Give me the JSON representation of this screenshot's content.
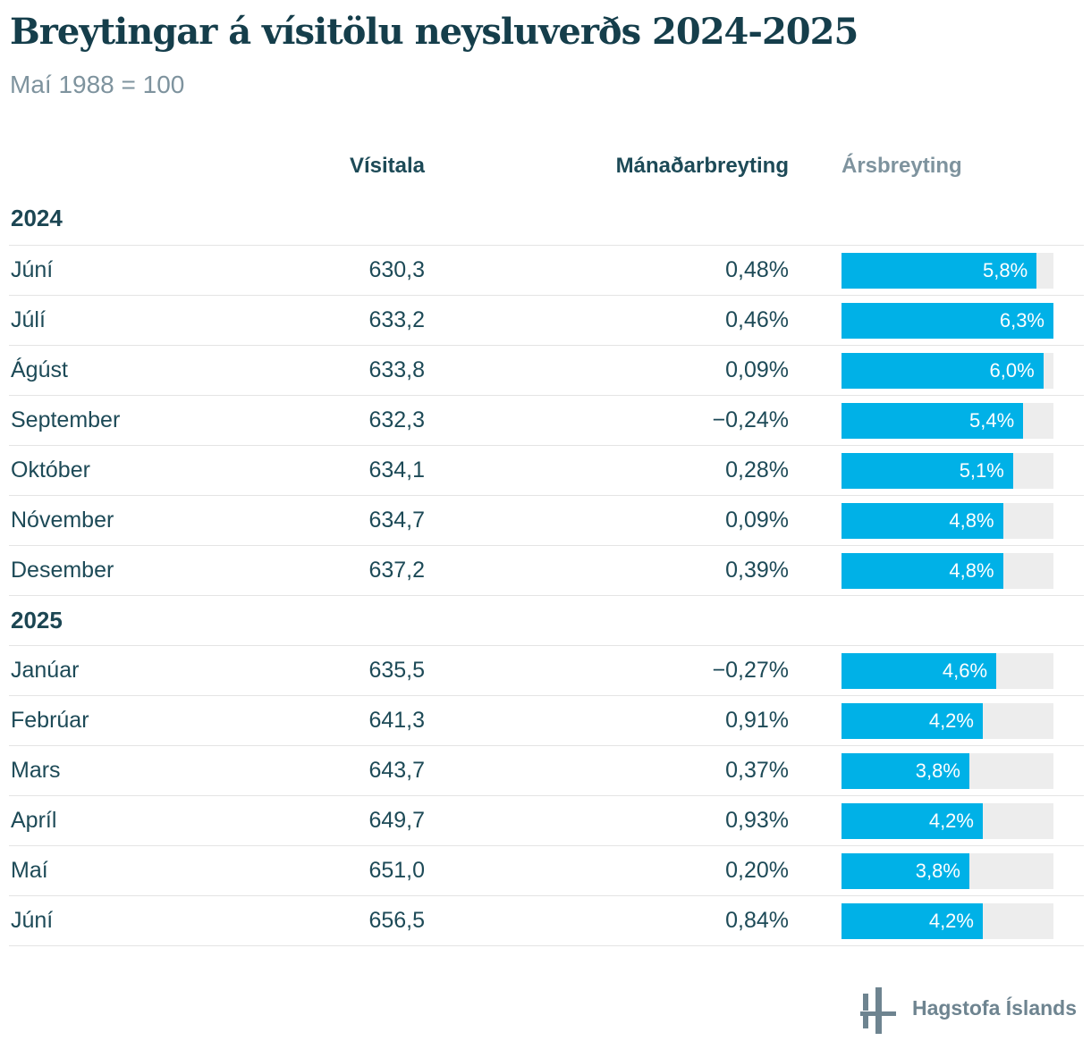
{
  "header": {
    "title": "Breytingar á vísitölu neysluverðs 2024-2025",
    "subtitle": "Maí 1988 = 100"
  },
  "columns": {
    "visitala": "Vísitala",
    "monthly": "Mánaðarbreyting",
    "annual": "Ársbreyting"
  },
  "sections": [
    {
      "year": "2024",
      "rows": [
        {
          "month": "Júní",
          "visitala": "630,3",
          "monthly": "0,48%",
          "annual_label": "5,8%",
          "annual": 5.8
        },
        {
          "month": "Júlí",
          "visitala": "633,2",
          "monthly": "0,46%",
          "annual_label": "6,3%",
          "annual": 6.3
        },
        {
          "month": "Ágúst",
          "visitala": "633,8",
          "monthly": "0,09%",
          "annual_label": "6,0%",
          "annual": 6.0
        },
        {
          "month": "September",
          "visitala": "632,3",
          "monthly": "−0,24%",
          "annual_label": "5,4%",
          "annual": 5.4
        },
        {
          "month": "Október",
          "visitala": "634,1",
          "monthly": "0,28%",
          "annual_label": "5,1%",
          "annual": 5.1
        },
        {
          "month": "Nóvember",
          "visitala": "634,7",
          "monthly": "0,09%",
          "annual_label": "4,8%",
          "annual": 4.8
        },
        {
          "month": "Desember",
          "visitala": "637,2",
          "monthly": "0,39%",
          "annual_label": "4,8%",
          "annual": 4.8
        }
      ]
    },
    {
      "year": "2025",
      "rows": [
        {
          "month": "Janúar",
          "visitala": "635,5",
          "monthly": "−0,27%",
          "annual_label": "4,6%",
          "annual": 4.6
        },
        {
          "month": "Febrúar",
          "visitala": "641,3",
          "monthly": "0,91%",
          "annual_label": "4,2%",
          "annual": 4.2
        },
        {
          "month": "Mars",
          "visitala": "643,7",
          "monthly": "0,37%",
          "annual_label": "3,8%",
          "annual": 3.8
        },
        {
          "month": "Apríl",
          "visitala": "649,7",
          "monthly": "0,93%",
          "annual_label": "4,2%",
          "annual": 4.2
        },
        {
          "month": "Maí",
          "visitala": "651,0",
          "monthly": "0,20%",
          "annual_label": "3,8%",
          "annual": 3.8
        },
        {
          "month": "Júní",
          "visitala": "656,5",
          "monthly": "0,84%",
          "annual_label": "4,2%",
          "annual": 4.2
        }
      ]
    }
  ],
  "footer": {
    "org": "Hagstofa Íslands"
  },
  "colors": {
    "bar": "#00b1e7",
    "bar_track": "#ededed",
    "text_dark": "#1d4a57",
    "text_muted": "#7e939e",
    "logo": "#6e8490",
    "separator": "#e4e4e4"
  },
  "chart_data": {
    "type": "table",
    "title": "Breytingar á vísitölu neysluverðs 2024-2025",
    "subtitle": "Maí 1988 = 100",
    "columns": [
      "Vísitala",
      "Mánaðarbreyting",
      "Ársbreyting"
    ],
    "categories": [
      "2024 Júní",
      "2024 Júlí",
      "2024 Ágúst",
      "2024 September",
      "2024 Október",
      "2024 Nóvember",
      "2024 Desember",
      "2025 Janúar",
      "2025 Febrúar",
      "2025 Mars",
      "2025 Apríl",
      "2025 Maí",
      "2025 Júní"
    ],
    "series": [
      {
        "name": "Vísitala",
        "values": [
          630.3,
          633.2,
          633.8,
          632.3,
          634.1,
          634.7,
          637.2,
          635.5,
          641.3,
          643.7,
          649.7,
          651.0,
          656.5
        ]
      },
      {
        "name": "Mánaðarbreyting (%)",
        "values": [
          0.48,
          0.46,
          0.09,
          -0.24,
          0.28,
          0.09,
          0.39,
          -0.27,
          0.91,
          0.37,
          0.93,
          0.2,
          0.84
        ]
      },
      {
        "name": "Ársbreyting (%)",
        "values": [
          5.8,
          6.3,
          6.0,
          5.4,
          5.1,
          4.8,
          4.8,
          4.6,
          4.2,
          3.8,
          4.2,
          3.8,
          4.2
        ]
      }
    ],
    "bar_column": "Ársbreyting",
    "bar_type": "bar",
    "bar_scale_max": 6.3
  }
}
